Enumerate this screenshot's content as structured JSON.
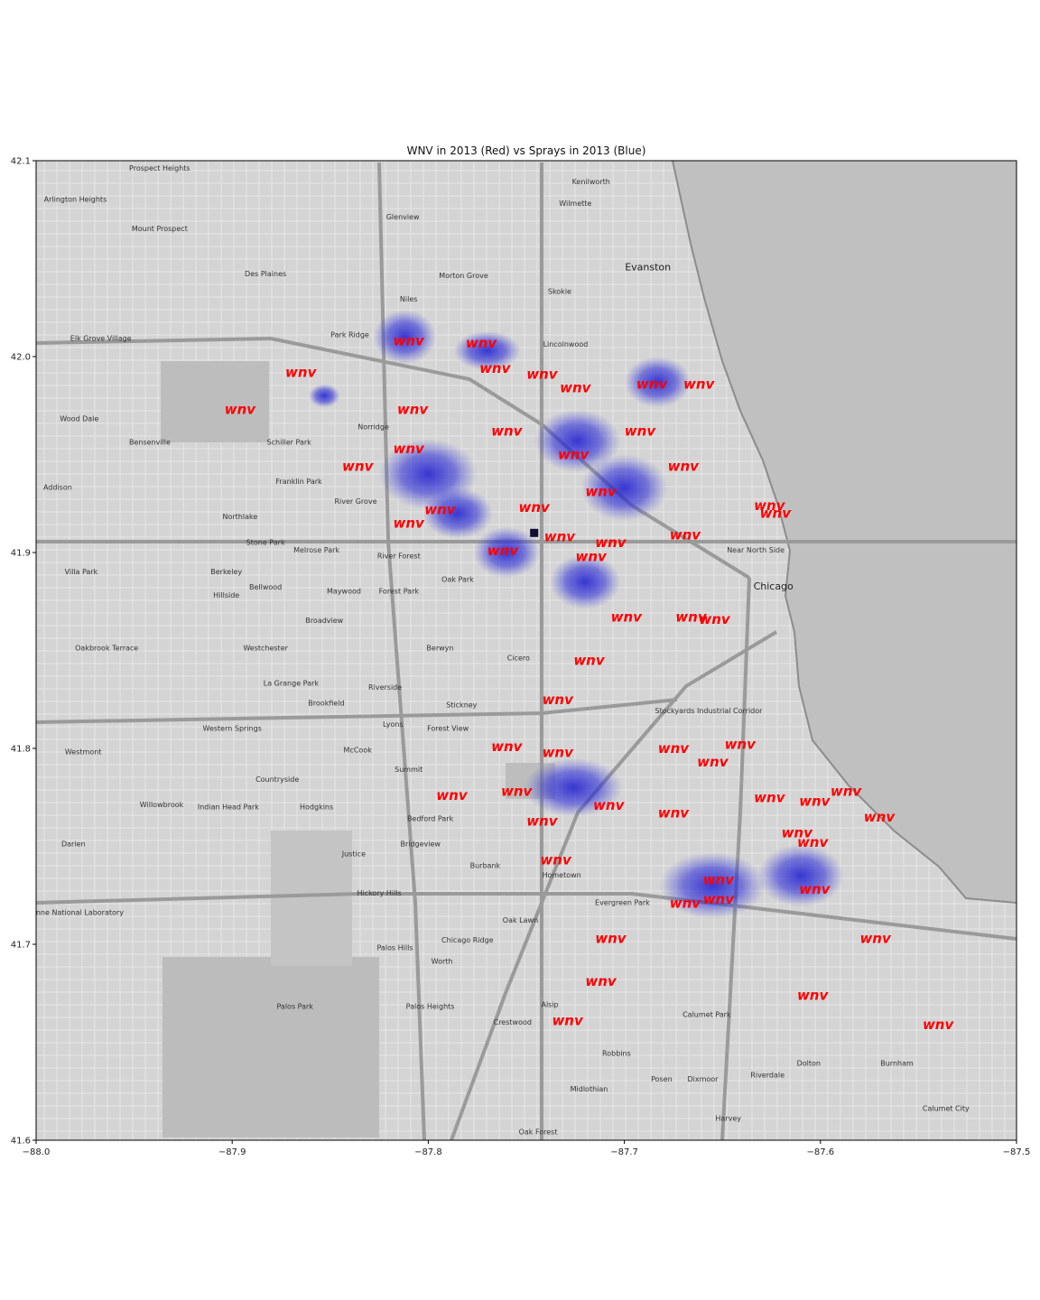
{
  "title": "WNV in 2013 (Red) vs Sprays in 2013 (Blue)",
  "colors": {
    "wnv": "#ff0000",
    "spray": "#2020d8",
    "lake": "#c0c0c0",
    "land": "#d6d6d6"
  },
  "chart_data": {
    "type": "scatter",
    "xlim": [
      -88.0,
      -87.5
    ],
    "ylim": [
      41.6,
      42.1
    ],
    "x_ticks": [
      "−88.0",
      "−87.9",
      "−87.8",
      "−87.7",
      "−87.6",
      "−87.5"
    ],
    "y_ticks": [
      "41.6",
      "41.7",
      "41.8",
      "41.9",
      "42.0",
      "42.1"
    ],
    "marker_label": "wnv",
    "wnv": [
      [
        -87.81,
        42.008
      ],
      [
        -87.773,
        42.007
      ],
      [
        -87.766,
        41.994
      ],
      [
        -87.742,
        41.991
      ],
      [
        -87.865,
        41.992
      ],
      [
        -87.896,
        41.973
      ],
      [
        -87.808,
        41.973
      ],
      [
        -87.725,
        41.984
      ],
      [
        -87.686,
        41.986
      ],
      [
        -87.662,
        41.986
      ],
      [
        -87.76,
        41.962
      ],
      [
        -87.692,
        41.962
      ],
      [
        -87.81,
        41.953
      ],
      [
        -87.836,
        41.944
      ],
      [
        -87.726,
        41.95
      ],
      [
        -87.67,
        41.944
      ],
      [
        -87.712,
        41.931
      ],
      [
        -87.794,
        41.922
      ],
      [
        -87.81,
        41.915
      ],
      [
        -87.746,
        41.923
      ],
      [
        -87.626,
        41.924
      ],
      [
        -87.623,
        41.92
      ],
      [
        -87.733,
        41.908
      ],
      [
        -87.669,
        41.909
      ],
      [
        -87.762,
        41.901
      ],
      [
        -87.707,
        41.905
      ],
      [
        -87.717,
        41.898
      ],
      [
        -87.699,
        41.867
      ],
      [
        -87.666,
        41.867
      ],
      [
        -87.654,
        41.866
      ],
      [
        -87.718,
        41.845
      ],
      [
        -87.734,
        41.825
      ],
      [
        -87.76,
        41.801
      ],
      [
        -87.734,
        41.798
      ],
      [
        -87.675,
        41.8
      ],
      [
        -87.641,
        41.802
      ],
      [
        -87.655,
        41.793
      ],
      [
        -87.755,
        41.778
      ],
      [
        -87.788,
        41.776
      ],
      [
        -87.708,
        41.771
      ],
      [
        -87.675,
        41.767
      ],
      [
        -87.742,
        41.763
      ],
      [
        -87.626,
        41.775
      ],
      [
        -87.603,
        41.773
      ],
      [
        -87.587,
        41.778
      ],
      [
        -87.57,
        41.765
      ],
      [
        -87.612,
        41.757
      ],
      [
        -87.604,
        41.752
      ],
      [
        -87.735,
        41.743
      ],
      [
        -87.652,
        41.733
      ],
      [
        -87.652,
        41.723
      ],
      [
        -87.669,
        41.721
      ],
      [
        -87.603,
        41.728
      ],
      [
        -87.572,
        41.703
      ],
      [
        -87.707,
        41.703
      ],
      [
        -87.712,
        41.681
      ],
      [
        -87.604,
        41.674
      ],
      [
        -87.729,
        41.661
      ],
      [
        -87.54,
        41.659
      ]
    ],
    "spray_clusters": [
      {
        "x": -87.812,
        "y": 42.01,
        "rx": 0.016,
        "ry": 0.014
      },
      {
        "x": -87.77,
        "y": 42.003,
        "rx": 0.017,
        "ry": 0.01
      },
      {
        "x": -87.683,
        "y": 41.987,
        "rx": 0.017,
        "ry": 0.013
      },
      {
        "x": -87.724,
        "y": 41.957,
        "rx": 0.022,
        "ry": 0.016
      },
      {
        "x": -87.7,
        "y": 41.933,
        "rx": 0.022,
        "ry": 0.017
      },
      {
        "x": -87.8,
        "y": 41.94,
        "rx": 0.025,
        "ry": 0.018
      },
      {
        "x": -87.785,
        "y": 41.92,
        "rx": 0.018,
        "ry": 0.013
      },
      {
        "x": -87.76,
        "y": 41.9,
        "rx": 0.017,
        "ry": 0.013
      },
      {
        "x": -87.72,
        "y": 41.885,
        "rx": 0.018,
        "ry": 0.014
      },
      {
        "x": -87.853,
        "y": 41.98,
        "rx": 0.008,
        "ry": 0.006
      },
      {
        "x": -87.726,
        "y": 41.78,
        "rx": 0.025,
        "ry": 0.015
      },
      {
        "x": -87.655,
        "y": 41.73,
        "rx": 0.027,
        "ry": 0.017
      },
      {
        "x": -87.61,
        "y": 41.735,
        "rx": 0.022,
        "ry": 0.016
      }
    ],
    "trap_marker": {
      "x": -87.746,
      "y": 41.91
    }
  },
  "map_labels": [
    {
      "text": "Prospect Heights",
      "x": -87.937,
      "y": 42.095
    },
    {
      "text": "Arlington Heights",
      "x": -87.98,
      "y": 42.079
    },
    {
      "text": "Mount Prospect",
      "x": -87.937,
      "y": 42.064
    },
    {
      "text": "Des Plaines",
      "x": -87.883,
      "y": 42.041
    },
    {
      "text": "Elk Grove Village",
      "x": -87.967,
      "y": 42.008
    },
    {
      "text": "Wood Dale",
      "x": -87.978,
      "y": 41.967
    },
    {
      "text": "Bensenville",
      "x": -87.942,
      "y": 41.955
    },
    {
      "text": "Addison",
      "x": -87.989,
      "y": 41.932
    },
    {
      "text": "Northlake",
      "x": -87.896,
      "y": 41.917
    },
    {
      "text": "Villa Park",
      "x": -87.977,
      "y": 41.889
    },
    {
      "text": "Oakbrook Terrace",
      "x": -87.964,
      "y": 41.85
    },
    {
      "text": "Westmont",
      "x": -87.976,
      "y": 41.797
    },
    {
      "text": "Willowbrook",
      "x": -87.936,
      "y": 41.77
    },
    {
      "text": "Darien",
      "x": -87.981,
      "y": 41.75
    },
    {
      "text": "Glenview",
      "x": -87.813,
      "y": 42.07
    },
    {
      "text": "Wilmette",
      "x": -87.725,
      "y": 42.077
    },
    {
      "text": "Kenilworth",
      "x": -87.717,
      "y": 42.088
    },
    {
      "text": "Morton Grove",
      "x": -87.782,
      "y": 42.04
    },
    {
      "text": "Skokie",
      "x": -87.733,
      "y": 42.032
    },
    {
      "text": "Niles",
      "x": -87.81,
      "y": 42.028
    },
    {
      "text": "Park Ridge",
      "x": -87.84,
      "y": 42.01
    },
    {
      "text": "Lincolnwood",
      "x": -87.73,
      "y": 42.005
    },
    {
      "text": "Norridge",
      "x": -87.828,
      "y": 41.963
    },
    {
      "text": "Schiller Park",
      "x": -87.871,
      "y": 41.955
    },
    {
      "text": "Franklin Park",
      "x": -87.866,
      "y": 41.935
    },
    {
      "text": "River Grove",
      "x": -87.837,
      "y": 41.925
    },
    {
      "text": "Stone Park",
      "x": -87.883,
      "y": 41.904
    },
    {
      "text": "Melrose Park",
      "x": -87.857,
      "y": 41.9
    },
    {
      "text": "River Forest",
      "x": -87.815,
      "y": 41.897
    },
    {
      "text": "Berkeley",
      "x": -87.903,
      "y": 41.889
    },
    {
      "text": "Bellwood",
      "x": -87.883,
      "y": 41.881
    },
    {
      "text": "Maywood",
      "x": -87.843,
      "y": 41.879
    },
    {
      "text": "Forest Park",
      "x": -87.815,
      "y": 41.879
    },
    {
      "text": "Oak Park",
      "x": -87.785,
      "y": 41.885
    },
    {
      "text": "Broadview",
      "x": -87.853,
      "y": 41.864
    },
    {
      "text": "Hillside",
      "x": -87.903,
      "y": 41.877
    },
    {
      "text": "Westchester",
      "x": -87.883,
      "y": 41.85
    },
    {
      "text": "Berwyn",
      "x": -87.794,
      "y": 41.85
    },
    {
      "text": "Cicero",
      "x": -87.754,
      "y": 41.845
    },
    {
      "text": "La Grange Park",
      "x": -87.87,
      "y": 41.832
    },
    {
      "text": "Riverside",
      "x": -87.822,
      "y": 41.83
    },
    {
      "text": "Brookfield",
      "x": -87.852,
      "y": 41.822
    },
    {
      "text": "Stickney",
      "x": -87.783,
      "y": 41.821
    },
    {
      "text": "Western Springs",
      "x": -87.9,
      "y": 41.809
    },
    {
      "text": "Lyons",
      "x": -87.818,
      "y": 41.811
    },
    {
      "text": "Forest View",
      "x": -87.79,
      "y": 41.809
    },
    {
      "text": "McCook",
      "x": -87.836,
      "y": 41.798
    },
    {
      "text": "Summit",
      "x": -87.81,
      "y": 41.788
    },
    {
      "text": "Countryside",
      "x": -87.877,
      "y": 41.783
    },
    {
      "text": "Indian Head Park",
      "x": -87.902,
      "y": 41.769
    },
    {
      "text": "Hodgkins",
      "x": -87.857,
      "y": 41.769
    },
    {
      "text": "Bedford Park",
      "x": -87.799,
      "y": 41.763
    },
    {
      "text": "Justice",
      "x": -87.838,
      "y": 41.745
    },
    {
      "text": "Bridgeview",
      "x": -87.804,
      "y": 41.75
    },
    {
      "text": "Burbank",
      "x": -87.771,
      "y": 41.739
    },
    {
      "text": "Hometown",
      "x": -87.732,
      "y": 41.734
    },
    {
      "text": "Hickory Hills",
      "x": -87.825,
      "y": 41.725
    },
    {
      "text": "Evergreen Park",
      "x": -87.701,
      "y": 41.72
    },
    {
      "text": "Oak Lawn",
      "x": -87.753,
      "y": 41.711
    },
    {
      "text": "Palos Hills",
      "x": -87.817,
      "y": 41.697
    },
    {
      "text": "Chicago Ridge",
      "x": -87.78,
      "y": 41.701
    },
    {
      "text": "Worth",
      "x": -87.793,
      "y": 41.69
    },
    {
      "text": "Palos Park",
      "x": -87.868,
      "y": 41.667
    },
    {
      "text": "Palos Heights",
      "x": -87.799,
      "y": 41.667
    },
    {
      "text": "Alsip",
      "x": -87.738,
      "y": 41.668
    },
    {
      "text": "Crestwood",
      "x": -87.757,
      "y": 41.659
    },
    {
      "text": "Calumet Park",
      "x": -87.658,
      "y": 41.663
    },
    {
      "text": "Robbins",
      "x": -87.704,
      "y": 41.643
    },
    {
      "text": "Dolton",
      "x": -87.606,
      "y": 41.638
    },
    {
      "text": "Burnham",
      "x": -87.561,
      "y": 41.638
    },
    {
      "text": "Posen",
      "x": -87.681,
      "y": 41.63
    },
    {
      "text": "Dixmoor",
      "x": -87.66,
      "y": 41.63
    },
    {
      "text": "Riverdale",
      "x": -87.627,
      "y": 41.632
    },
    {
      "text": "Midlothian",
      "x": -87.718,
      "y": 41.625
    },
    {
      "text": "Harvey",
      "x": -87.647,
      "y": 41.61
    },
    {
      "text": "Calumet City",
      "x": -87.536,
      "y": 41.615
    },
    {
      "text": "Oak Forest",
      "x": -87.744,
      "y": 41.603
    },
    {
      "text": "Near North Side",
      "x": -87.633,
      "y": 41.9
    },
    {
      "text": "Stockyards Industrial Corridor",
      "x": -87.657,
      "y": 41.818
    },
    {
      "text": "Argonne National Laboratory",
      "x": -87.982,
      "y": 41.715
    }
  ],
  "map_labels_big": [
    {
      "text": "Evanston",
      "x": -87.688,
      "y": 42.044
    },
    {
      "text": "Chicago",
      "x": -87.624,
      "y": 41.881
    }
  ]
}
